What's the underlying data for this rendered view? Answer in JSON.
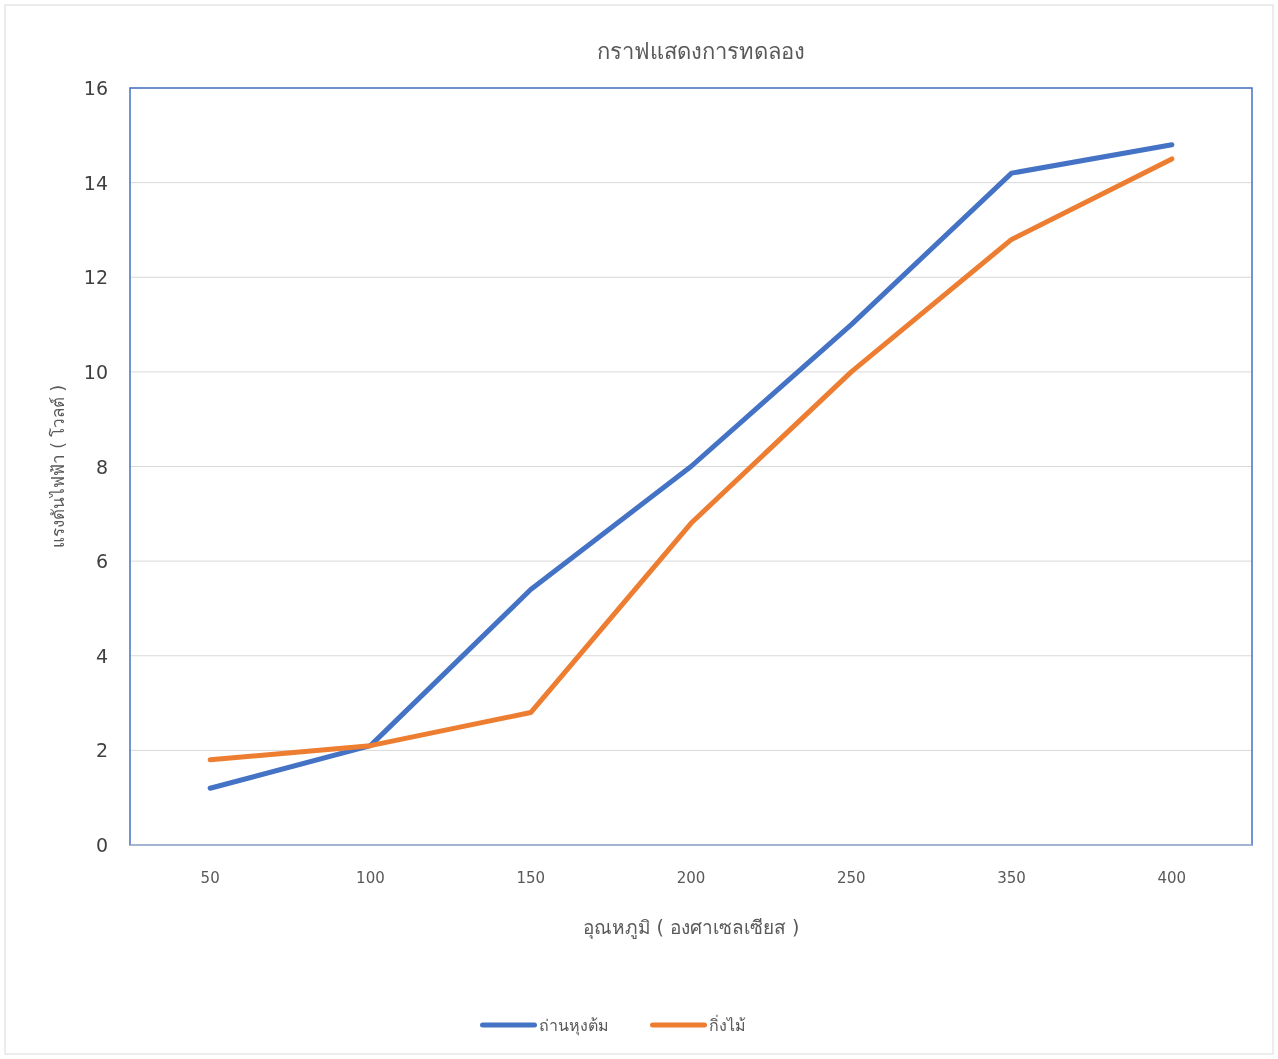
{
  "chart_data": {
    "type": "line",
    "title": "กราฟแสดงการทดลอง",
    "xlabel": "อุณหภูมิ ( องศาเซลเซียส )",
    "ylabel": "แรงดันไฟฟ้า ( โวลต์ )",
    "categories": [
      "50",
      "100",
      "150",
      "200",
      "250",
      "350",
      "400"
    ],
    "series": [
      {
        "name": "ถ่านหุงต้ม",
        "color": "#4472c4",
        "values": [
          1.2,
          2.1,
          5.4,
          8.0,
          11.0,
          14.2,
          14.8
        ]
      },
      {
        "name": "กิ่งไม้",
        "color": "#ed7d31",
        "values": [
          1.8,
          2.1,
          2.8,
          6.8,
          10.0,
          12.8,
          14.5
        ]
      }
    ],
    "ylim": [
      0,
      16
    ],
    "yticks": [
      0,
      2,
      4,
      6,
      8,
      10,
      12,
      14,
      16
    ],
    "grid": "y",
    "legend": "bottom",
    "marker": "none",
    "line_style": "solid"
  }
}
